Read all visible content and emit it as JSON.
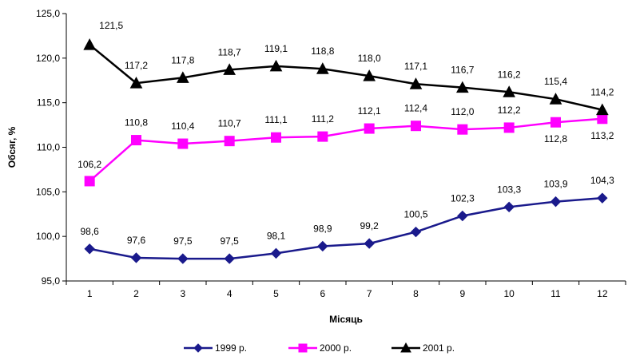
{
  "chart_data": {
    "type": "line",
    "xlabel": "Місяць",
    "ylabel": "Обсяг, %",
    "x": [
      "1",
      "2",
      "3",
      "4",
      "5",
      "6",
      "7",
      "8",
      "9",
      "10",
      "11",
      "12"
    ],
    "ylim": [
      95,
      125
    ],
    "y_ticks": [
      "95,0",
      "100,0",
      "105,0",
      "110,0",
      "115,0",
      "120,0",
      "125,0"
    ],
    "y_tick_values": [
      95,
      100,
      105,
      110,
      115,
      120,
      125
    ],
    "grid": false,
    "legend_position": "bottom",
    "series": [
      {
        "name": "1999 р.",
        "color": "#1a1a8c",
        "marker": "diamond",
        "values": [
          98.6,
          97.6,
          97.5,
          97.5,
          98.1,
          98.9,
          99.2,
          100.5,
          102.3,
          103.3,
          103.9,
          104.3
        ],
        "labels": [
          "98,6",
          "97,6",
          "97,5",
          "97,5",
          "98,1",
          "98,9",
          "99,2",
          "100,5",
          "102,3",
          "103,3",
          "103,9",
          "104,3"
        ]
      },
      {
        "name": "2000 р.",
        "color": "#ff00ff",
        "marker": "square",
        "values": [
          106.2,
          110.8,
          110.4,
          110.7,
          111.1,
          111.2,
          112.1,
          112.4,
          112.0,
          112.2,
          112.8,
          113.2
        ],
        "labels": [
          "106,2",
          "110,8",
          "110,4",
          "110,7",
          "111,1",
          "111,2",
          "112,1",
          "112,4",
          "112,0",
          "112,2",
          "112,8",
          "113,2"
        ]
      },
      {
        "name": "2001 р.",
        "color": "#000000",
        "marker": "triangle",
        "values": [
          121.5,
          117.2,
          117.8,
          118.7,
          119.1,
          118.8,
          118.0,
          117.1,
          116.7,
          116.2,
          115.4,
          114.2
        ],
        "labels": [
          "121,5",
          "117,2",
          "117,8",
          "118,7",
          "119,1",
          "118,8",
          "118,0",
          "117,1",
          "116,7",
          "116,2",
          "115,4",
          "114,2"
        ]
      }
    ]
  }
}
